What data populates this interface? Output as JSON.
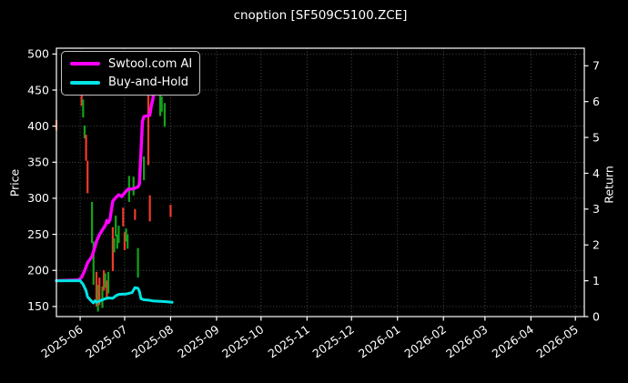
{
  "title": "cnoption [SF509C5100.ZCE]",
  "colors": {
    "background": "#000000",
    "text": "#ffffff",
    "grid": "#565656",
    "spine": "#ffffff",
    "candle_red": "#ef3b2c",
    "candle_green": "#12a31b",
    "ai_line": "#ff00ff",
    "buy_hold_line": "#00e5e5"
  },
  "chart_data": {
    "type": "candlestick",
    "title": "cnoption [SF509C5100.ZCE]",
    "grid": "dotted",
    "legend": {
      "position": "upper-left",
      "entries": [
        {
          "label": "Swtool.com AI",
          "color": "#ff00ff"
        },
        {
          "label": "Buy-and-Hold",
          "color": "#00e5e5"
        }
      ]
    },
    "x_axis": {
      "tick_labels": [
        "2025-06",
        "2025-07",
        "2025-08",
        "2025-09",
        "2025-10",
        "2025-11",
        "2025-12",
        "2026-01",
        "2026-02",
        "2026-03",
        "2026-04",
        "2026-05"
      ],
      "range": [
        "2025-05-16",
        "2026-05-07"
      ],
      "tick_rotation_deg": -35
    },
    "left_axis": {
      "label": "Price",
      "ticks": [
        500,
        450,
        400,
        350,
        300,
        250,
        200,
        150
      ],
      "range": [
        136,
        508
      ]
    },
    "right_axis": {
      "label": "Return",
      "ticks": [
        7,
        6,
        5,
        4,
        3,
        2,
        1,
        0
      ],
      "range": [
        0,
        7.49
      ]
    },
    "candles": [
      {
        "date": "2025-05-16",
        "low": 394,
        "high": 408,
        "color": "red"
      },
      {
        "date": "2025-06-02",
        "low": 428,
        "high": 455,
        "color": "red"
      },
      {
        "date": "2025-06-03",
        "low": 412,
        "high": 437,
        "color": "green"
      },
      {
        "date": "2025-06-04",
        "low": 383,
        "high": 401,
        "color": "green"
      },
      {
        "date": "2025-06-05",
        "low": 352,
        "high": 388,
        "color": "red"
      },
      {
        "date": "2025-06-06",
        "low": 307,
        "high": 352,
        "color": "red"
      },
      {
        "date": "2025-06-09",
        "low": 238,
        "high": 295,
        "color": "green"
      },
      {
        "date": "2025-06-10",
        "low": 180,
        "high": 240,
        "color": "green"
      },
      {
        "date": "2025-06-12",
        "low": 150,
        "high": 198,
        "color": "red"
      },
      {
        "date": "2025-06-13",
        "low": 143,
        "high": 180,
        "color": "green"
      },
      {
        "date": "2025-06-14",
        "low": 152,
        "high": 190,
        "color": "red"
      },
      {
        "date": "2025-06-16",
        "low": 148,
        "high": 178,
        "color": "green"
      },
      {
        "date": "2025-06-17",
        "low": 172,
        "high": 200,
        "color": "red"
      },
      {
        "date": "2025-06-18",
        "low": 176,
        "high": 196,
        "color": "green"
      },
      {
        "date": "2025-06-19",
        "low": 160,
        "high": 186,
        "color": "red"
      },
      {
        "date": "2025-06-20",
        "low": 168,
        "high": 198,
        "color": "green"
      },
      {
        "date": "2025-06-23",
        "low": 199,
        "high": 260,
        "color": "red"
      },
      {
        "date": "2025-06-24",
        "low": 225,
        "high": 245,
        "color": "green"
      },
      {
        "date": "2025-06-25",
        "low": 247,
        "high": 276,
        "color": "green"
      },
      {
        "date": "2025-06-26",
        "low": 230,
        "high": 250,
        "color": "green"
      },
      {
        "date": "2025-06-27",
        "low": 238,
        "high": 262,
        "color": "green"
      },
      {
        "date": "2025-06-30",
        "low": 261,
        "high": 287,
        "color": "red"
      },
      {
        "date": "2025-07-01",
        "low": 228,
        "high": 253,
        "color": "red"
      },
      {
        "date": "2025-07-02",
        "low": 240,
        "high": 258,
        "color": "green"
      },
      {
        "date": "2025-07-03",
        "low": 230,
        "high": 250,
        "color": "green"
      },
      {
        "date": "2025-07-04",
        "low": 295,
        "high": 331,
        "color": "green"
      },
      {
        "date": "2025-07-07",
        "low": 304,
        "high": 330,
        "color": "green"
      },
      {
        "date": "2025-07-08",
        "low": 270,
        "high": 285,
        "color": "red"
      },
      {
        "date": "2025-07-10",
        "low": 190,
        "high": 231,
        "color": "green"
      },
      {
        "date": "2025-07-14",
        "low": 325,
        "high": 358,
        "color": "green"
      },
      {
        "date": "2025-07-17",
        "low": 346,
        "high": 473,
        "color": "red"
      },
      {
        "date": "2025-07-18",
        "low": 268,
        "high": 304,
        "color": "red"
      },
      {
        "date": "2025-07-25",
        "low": 414,
        "high": 451,
        "color": "green"
      },
      {
        "date": "2025-07-26",
        "low": 420,
        "high": 441,
        "color": "green"
      },
      {
        "date": "2025-07-28",
        "low": 399,
        "high": 432,
        "color": "green"
      },
      {
        "date": "2025-08-01",
        "low": 274,
        "high": 291,
        "color": "red"
      }
    ],
    "series": [
      {
        "name": "Swtool.com AI",
        "axis": "right",
        "color": "#ff00ff",
        "width": 3.4,
        "points": [
          [
            "2025-05-16",
            1.0
          ],
          [
            "2025-05-31",
            1.02
          ],
          [
            "2025-06-02",
            1.1
          ],
          [
            "2025-06-04",
            1.28
          ],
          [
            "2025-06-06",
            1.5
          ],
          [
            "2025-06-09",
            1.68
          ],
          [
            "2025-06-11",
            1.95
          ],
          [
            "2025-06-12",
            2.1
          ],
          [
            "2025-06-14",
            2.28
          ],
          [
            "2025-06-16",
            2.42
          ],
          [
            "2025-06-18",
            2.55
          ],
          [
            "2025-06-19",
            2.68
          ],
          [
            "2025-06-20",
            2.62
          ],
          [
            "2025-06-21",
            2.7
          ],
          [
            "2025-06-23",
            3.22
          ],
          [
            "2025-06-25",
            3.32
          ],
          [
            "2025-06-27",
            3.4
          ],
          [
            "2025-06-29",
            3.35
          ],
          [
            "2025-07-01",
            3.45
          ],
          [
            "2025-07-03",
            3.55
          ],
          [
            "2025-07-07",
            3.57
          ],
          [
            "2025-07-10",
            3.62
          ],
          [
            "2025-07-11",
            3.7
          ],
          [
            "2025-07-12",
            4.6
          ],
          [
            "2025-07-13",
            5.45
          ],
          [
            "2025-07-14",
            5.58
          ],
          [
            "2025-07-16",
            5.6
          ],
          [
            "2025-07-18",
            5.62
          ],
          [
            "2025-07-19",
            5.9
          ],
          [
            "2025-07-20",
            6.05
          ],
          [
            "2025-07-21",
            6.4
          ],
          [
            "2025-07-22",
            7.05
          ]
        ]
      },
      {
        "name": "Buy-and-Hold",
        "axis": "right",
        "color": "#00e5e5",
        "width": 3.0,
        "points": [
          [
            "2025-05-16",
            1.0
          ],
          [
            "2025-06-01",
            1.0
          ],
          [
            "2025-06-03",
            0.9
          ],
          [
            "2025-06-05",
            0.72
          ],
          [
            "2025-06-06",
            0.55
          ],
          [
            "2025-06-08",
            0.46
          ],
          [
            "2025-06-10",
            0.38
          ],
          [
            "2025-06-11",
            0.44
          ],
          [
            "2025-06-12",
            0.4
          ],
          [
            "2025-06-14",
            0.43
          ],
          [
            "2025-06-16",
            0.47
          ],
          [
            "2025-06-18",
            0.5
          ],
          [
            "2025-06-20",
            0.52
          ],
          [
            "2025-06-23",
            0.51
          ],
          [
            "2025-06-25",
            0.58
          ],
          [
            "2025-06-27",
            0.62
          ],
          [
            "2025-06-30",
            0.63
          ],
          [
            "2025-07-02",
            0.63
          ],
          [
            "2025-07-04",
            0.65
          ],
          [
            "2025-07-06",
            0.67
          ],
          [
            "2025-07-08",
            0.81
          ],
          [
            "2025-07-10",
            0.79
          ],
          [
            "2025-07-11",
            0.7
          ],
          [
            "2025-07-12",
            0.5
          ],
          [
            "2025-07-14",
            0.47
          ],
          [
            "2025-07-17",
            0.46
          ],
          [
            "2025-07-20",
            0.44
          ],
          [
            "2025-07-24",
            0.43
          ],
          [
            "2025-07-28",
            0.42
          ],
          [
            "2025-08-02",
            0.4
          ]
        ]
      }
    ]
  }
}
